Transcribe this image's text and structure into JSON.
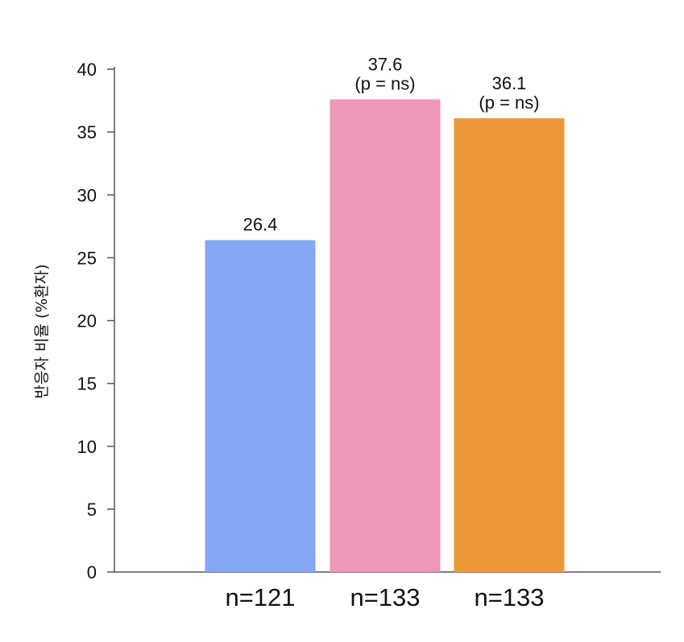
{
  "chart_data": {
    "type": "bar",
    "categories": [
      "n=121",
      "n=133",
      "n=133"
    ],
    "values": [
      26.4,
      37.6,
      36.1
    ],
    "data_labels": [
      [
        "26.4"
      ],
      [
        "37.6",
        "(p = ns)"
      ],
      [
        "36.1",
        "(p = ns)"
      ]
    ],
    "colors": [
      "#85a8f5",
      "#ef97b9",
      "#ed9838"
    ],
    "title": "",
    "xlabel": "",
    "ylabel": "반응자 비율 (%환자)",
    "ylim": [
      0,
      40
    ],
    "yticks": [
      "0",
      "5",
      "10",
      "15",
      "20",
      "25",
      "30",
      "35",
      "40"
    ],
    "grid": false,
    "legend": "none"
  }
}
